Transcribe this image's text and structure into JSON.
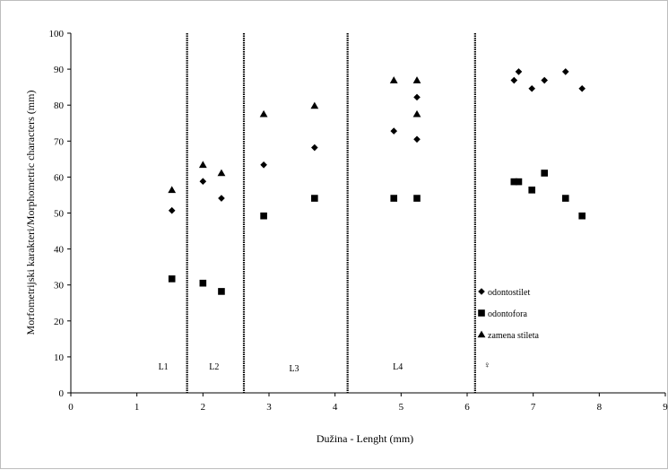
{
  "chart_data": {
    "type": "scatter",
    "xlabel": "Dužina - Lenght (mm)",
    "ylabel": "Morfometrijski karakteri/Morphometric characters (mm)",
    "xlim": [
      0,
      9
    ],
    "ylim": [
      0,
      100
    ],
    "x_ticks": [
      "0",
      "1",
      "2",
      "3",
      "4",
      "5",
      "6",
      "7",
      "8",
      "9"
    ],
    "y_ticks": [
      "0",
      "10",
      "20",
      "30",
      "40",
      "50",
      "60",
      "70",
      "80",
      "90",
      "100"
    ],
    "grid": false,
    "legend_position": "lower-right",
    "dividers_x": [
      1.76,
      2.62,
      4.19,
      6.12
    ],
    "section_labels": [
      {
        "text": "L1",
        "x": 1.4,
        "y": 7.5
      },
      {
        "text": "L2",
        "x": 2.17,
        "y": 7.5
      },
      {
        "text": "L3",
        "x": 3.38,
        "y": 7.0
      },
      {
        "text": "L4",
        "x": 4.95,
        "y": 7.5
      },
      {
        "text": "♀",
        "x": 6.3,
        "y": 8.0
      }
    ],
    "series": [
      {
        "name": "odontostilet",
        "marker": "diamond",
        "points": [
          [
            1.53,
            50.7
          ],
          [
            2.0,
            58.8
          ],
          [
            2.28,
            54.1
          ],
          [
            2.92,
            63.4
          ],
          [
            3.69,
            68.2
          ],
          [
            4.89,
            72.8
          ],
          [
            5.24,
            70.5
          ],
          [
            5.24,
            82.2
          ],
          [
            6.71,
            86.9
          ],
          [
            6.78,
            89.3
          ],
          [
            6.98,
            84.6
          ],
          [
            7.17,
            86.9
          ],
          [
            7.49,
            89.3
          ],
          [
            7.74,
            84.6
          ]
        ]
      },
      {
        "name": "odontofora",
        "marker": "square",
        "points": [
          [
            1.53,
            31.7
          ],
          [
            2.0,
            30.5
          ],
          [
            2.28,
            28.2
          ],
          [
            2.92,
            49.2
          ],
          [
            3.69,
            54.1
          ],
          [
            4.89,
            54.1
          ],
          [
            5.24,
            54.1
          ],
          [
            6.71,
            58.7
          ],
          [
            6.78,
            58.7
          ],
          [
            6.98,
            56.4
          ],
          [
            7.17,
            61.1
          ],
          [
            7.49,
            54.1
          ],
          [
            7.74,
            49.2
          ]
        ]
      },
      {
        "name": "zamena stileta",
        "marker": "triangle",
        "points": [
          [
            1.53,
            56.4
          ],
          [
            2.0,
            63.4
          ],
          [
            2.28,
            61.1
          ],
          [
            2.92,
            77.5
          ],
          [
            3.69,
            79.8
          ],
          [
            4.89,
            86.9
          ],
          [
            5.24,
            86.9
          ],
          [
            5.24,
            77.5
          ]
        ]
      }
    ]
  }
}
